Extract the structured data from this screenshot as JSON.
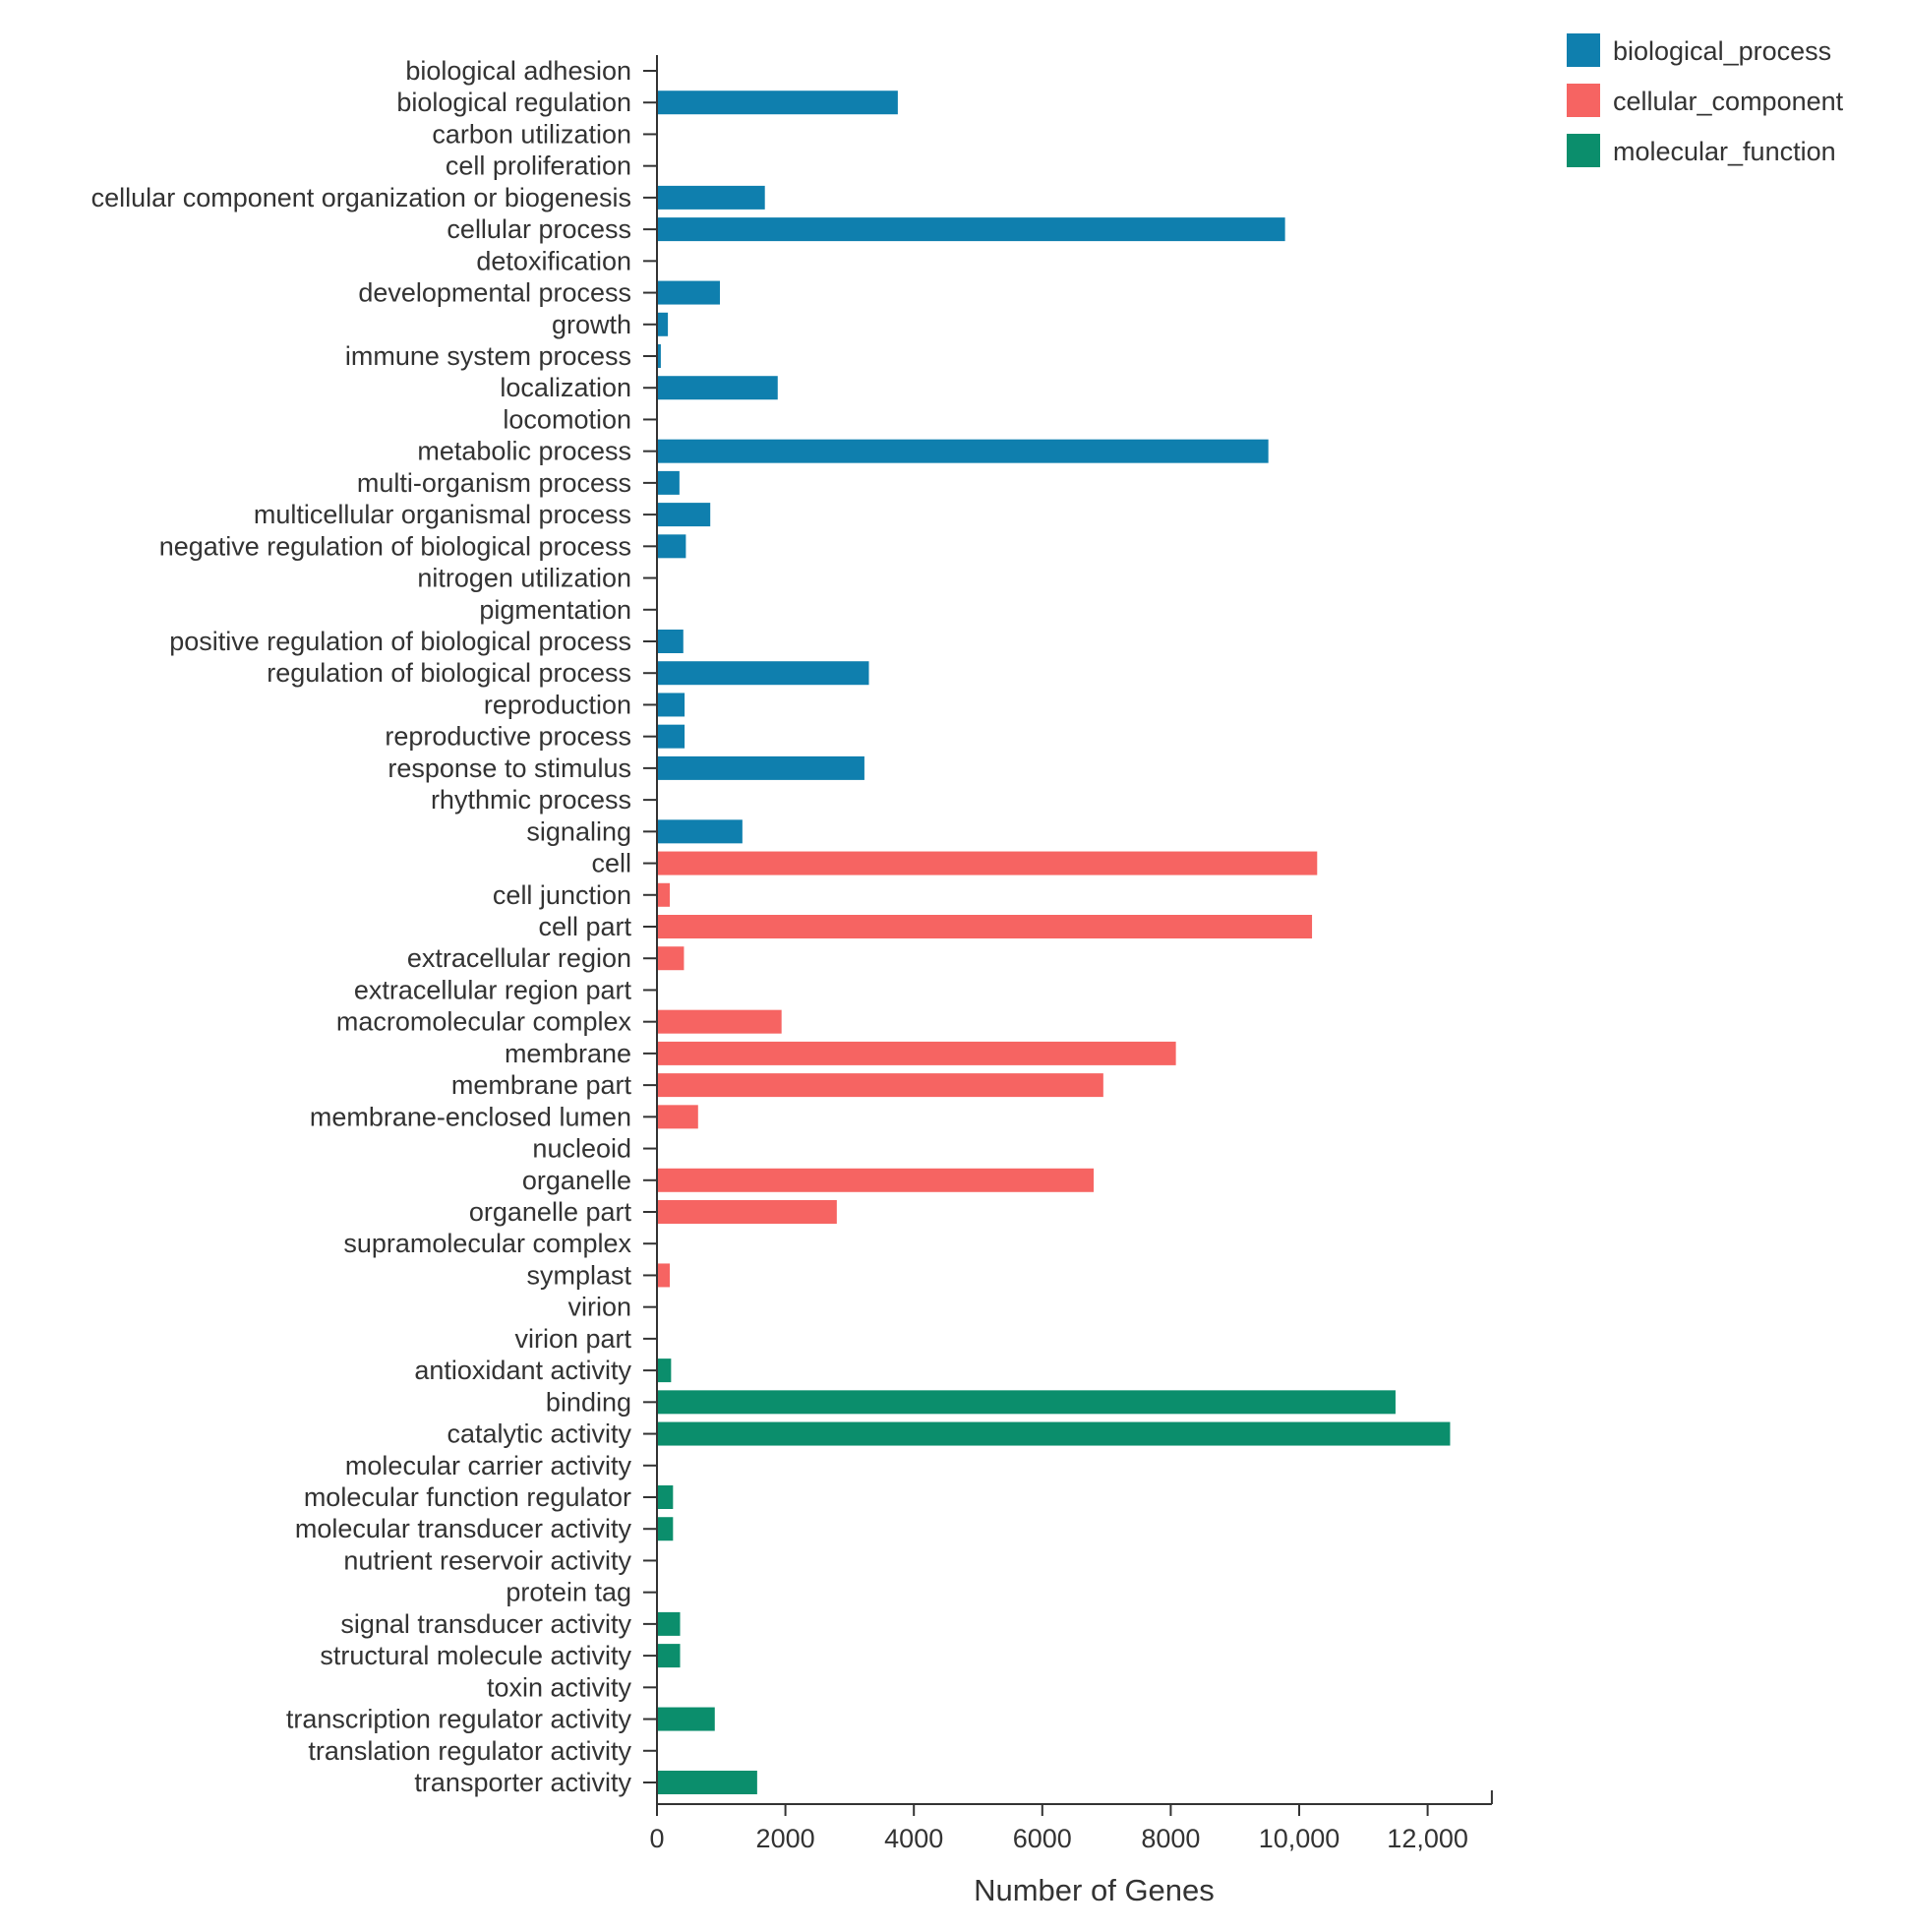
{
  "chart_data": {
    "type": "bar",
    "orientation": "horizontal",
    "title": "",
    "xlabel": "Number of Genes",
    "ylabel": "",
    "xlim": [
      0,
      13000
    ],
    "xticks": [
      {
        "value": 0,
        "label": "0"
      },
      {
        "value": 2000,
        "label": "2000"
      },
      {
        "value": 4000,
        "label": "4000"
      },
      {
        "value": 6000,
        "label": "6000"
      },
      {
        "value": 8000,
        "label": "8000"
      },
      {
        "value": 10000,
        "label": "10,000"
      },
      {
        "value": 12000,
        "label": "12,000"
      }
    ],
    "grid": false,
    "legend_position": "top-right",
    "series": [
      {
        "name": "biological_process",
        "color": "#0f7fae"
      },
      {
        "name": "cellular_component",
        "color": "#f66462"
      },
      {
        "name": "molecular_function",
        "color": "#0b8e6c"
      }
    ],
    "categories": [
      {
        "label": "biological adhesion",
        "value": 0,
        "series": "biological_process"
      },
      {
        "label": "biological regulation",
        "value": 3750,
        "series": "biological_process"
      },
      {
        "label": "carbon utilization",
        "value": 0,
        "series": "biological_process"
      },
      {
        "label": "cell proliferation",
        "value": 0,
        "series": "biological_process"
      },
      {
        "label": "cellular component organization or biogenesis",
        "value": 1680,
        "series": "biological_process"
      },
      {
        "label": "cellular process",
        "value": 9780,
        "series": "biological_process"
      },
      {
        "label": "detoxification",
        "value": 0,
        "series": "biological_process"
      },
      {
        "label": "developmental process",
        "value": 980,
        "series": "biological_process"
      },
      {
        "label": "growth",
        "value": 170,
        "series": "biological_process"
      },
      {
        "label": "immune system process",
        "value": 60,
        "series": "biological_process"
      },
      {
        "label": "localization",
        "value": 1880,
        "series": "biological_process"
      },
      {
        "label": "locomotion",
        "value": 0,
        "series": "biological_process"
      },
      {
        "label": "metabolic process",
        "value": 9520,
        "series": "biological_process"
      },
      {
        "label": "multi-organism process",
        "value": 350,
        "series": "biological_process"
      },
      {
        "label": "multicellular organismal process",
        "value": 830,
        "series": "biological_process"
      },
      {
        "label": "negative regulation of biological process",
        "value": 450,
        "series": "biological_process"
      },
      {
        "label": "nitrogen utilization",
        "value": 0,
        "series": "biological_process"
      },
      {
        "label": "pigmentation",
        "value": 0,
        "series": "biological_process"
      },
      {
        "label": "positive regulation of biological process",
        "value": 410,
        "series": "biological_process"
      },
      {
        "label": "regulation of biological process",
        "value": 3300,
        "series": "biological_process"
      },
      {
        "label": "reproduction",
        "value": 430,
        "series": "biological_process"
      },
      {
        "label": "reproductive process",
        "value": 430,
        "series": "biological_process"
      },
      {
        "label": "response to stimulus",
        "value": 3230,
        "series": "biological_process"
      },
      {
        "label": "rhythmic process",
        "value": 0,
        "series": "biological_process"
      },
      {
        "label": "signaling",
        "value": 1330,
        "series": "biological_process"
      },
      {
        "label": "cell",
        "value": 10280,
        "series": "cellular_component"
      },
      {
        "label": "cell junction",
        "value": 200,
        "series": "cellular_component"
      },
      {
        "label": "cell part",
        "value": 10200,
        "series": "cellular_component"
      },
      {
        "label": "extracellular region",
        "value": 420,
        "series": "cellular_component"
      },
      {
        "label": "extracellular region part",
        "value": 0,
        "series": "cellular_component"
      },
      {
        "label": "macromolecular complex",
        "value": 1940,
        "series": "cellular_component"
      },
      {
        "label": "membrane",
        "value": 8080,
        "series": "cellular_component"
      },
      {
        "label": "membrane part",
        "value": 6950,
        "series": "cellular_component"
      },
      {
        "label": "membrane-enclosed lumen",
        "value": 640,
        "series": "cellular_component"
      },
      {
        "label": "nucleoid",
        "value": 0,
        "series": "cellular_component"
      },
      {
        "label": "organelle",
        "value": 6800,
        "series": "cellular_component"
      },
      {
        "label": "organelle part",
        "value": 2800,
        "series": "cellular_component"
      },
      {
        "label": "supramolecular complex",
        "value": 0,
        "series": "cellular_component"
      },
      {
        "label": "symplast",
        "value": 200,
        "series": "cellular_component"
      },
      {
        "label": "virion",
        "value": 0,
        "series": "cellular_component"
      },
      {
        "label": "virion part",
        "value": 0,
        "series": "cellular_component"
      },
      {
        "label": "antioxidant activity",
        "value": 220,
        "series": "molecular_function"
      },
      {
        "label": "binding",
        "value": 11500,
        "series": "molecular_function"
      },
      {
        "label": "catalytic activity",
        "value": 12350,
        "series": "molecular_function"
      },
      {
        "label": "molecular carrier activity",
        "value": 0,
        "series": "molecular_function"
      },
      {
        "label": "molecular function regulator",
        "value": 250,
        "series": "molecular_function"
      },
      {
        "label": "molecular transducer activity",
        "value": 250,
        "series": "molecular_function"
      },
      {
        "label": "nutrient reservoir activity",
        "value": 0,
        "series": "molecular_function"
      },
      {
        "label": "protein tag",
        "value": 0,
        "series": "molecular_function"
      },
      {
        "label": "signal transducer activity",
        "value": 360,
        "series": "molecular_function"
      },
      {
        "label": "structural molecule activity",
        "value": 360,
        "series": "molecular_function"
      },
      {
        "label": "toxin activity",
        "value": 0,
        "series": "molecular_function"
      },
      {
        "label": "transcription regulator activity",
        "value": 900,
        "series": "molecular_function"
      },
      {
        "label": "translation regulator activity",
        "value": 0,
        "series": "molecular_function"
      },
      {
        "label": "transporter activity",
        "value": 1560,
        "series": "molecular_function"
      }
    ]
  }
}
